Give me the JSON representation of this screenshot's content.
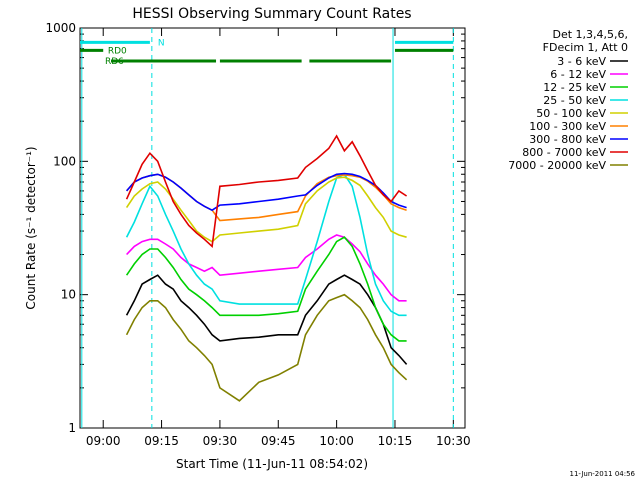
{
  "chart_data": {
    "type": "line",
    "title": "HESSI Observing Summary Count Rates",
    "xlabel": "Start Time (11-Jun-11 08:54:02)",
    "ylabel": "Count Rate (s⁻¹ detector⁻¹)",
    "y_scale": "log",
    "ylim": [
      1,
      1000
    ],
    "xlim": [
      "08:54:02",
      "10:33:00"
    ],
    "x_ticks": [
      "09:00",
      "09:15",
      "09:30",
      "09:45",
      "10:00",
      "10:15",
      "10:30"
    ],
    "y_ticks": [
      "1",
      "10",
      "100",
      "1000"
    ],
    "grid": false,
    "legend_position": "right",
    "legend_header": [
      "Det 1,3,4,5,6,",
      "FDecim 1, Att 0"
    ],
    "footer_timestamp": "11-Jun-2011 04:56",
    "vertical_markers": {
      "color": "#00e0e0",
      "solid": [
        "08:54:30",
        "10:14:30"
      ],
      "dashed": [
        "09:12:30",
        "10:30:00"
      ]
    },
    "flags": [
      {
        "label": "N",
        "color": "#00e0e0",
        "segments": [
          [
            "08:54",
            "09:12"
          ],
          [
            "10:15",
            "10:30"
          ]
        ],
        "level": 780
      },
      {
        "label": "RD0",
        "color": "#008000",
        "segments": [
          [
            "08:54",
            "09:00"
          ],
          [
            "10:15",
            "10:30"
          ]
        ],
        "level": 680
      },
      {
        "label": "RD6",
        "color": "#008000",
        "segments": [
          [
            "09:02",
            "09:29"
          ],
          [
            "09:30",
            "09:51"
          ],
          [
            "09:53",
            "10:14"
          ]
        ],
        "level": 565
      }
    ],
    "x": [
      "09:06",
      "09:08",
      "09:10",
      "09:12",
      "09:14",
      "09:16",
      "09:18",
      "09:20",
      "09:22",
      "09:24",
      "09:26",
      "09:28",
      "09:30",
      "09:35",
      "09:40",
      "09:45",
      "09:50",
      "09:52",
      "09:55",
      "09:58",
      "10:00",
      "10:02",
      "10:04",
      "10:06",
      "10:08",
      "10:10",
      "10:12",
      "10:14",
      "10:16",
      "10:18"
    ],
    "series": [
      {
        "name": "3 - 6 keV",
        "color": "#000000",
        "values": [
          7,
          9,
          12,
          13,
          14,
          12,
          11,
          9,
          8,
          7,
          6,
          5,
          4.5,
          4.7,
          4.8,
          5,
          5,
          7,
          9,
          12,
          13,
          14,
          13,
          12,
          10,
          8,
          6,
          4,
          3.5,
          3
        ]
      },
      {
        "name": "6 - 12 keV",
        "color": "#ff00ff",
        "values": [
          20,
          23,
          25,
          26,
          26,
          24,
          22,
          19,
          17,
          16,
          15,
          16,
          14,
          14.5,
          15,
          15.5,
          16,
          19,
          22,
          26,
          28,
          27,
          24,
          21,
          17,
          14,
          12,
          10,
          9,
          9
        ]
      },
      {
        "name": "12 - 25 keV",
        "color": "#00d000",
        "values": [
          14,
          17,
          20,
          22,
          22,
          19,
          16,
          13,
          11,
          10,
          9,
          8,
          7,
          7,
          7,
          7.2,
          7.5,
          11,
          15,
          20,
          25,
          27,
          23,
          17,
          12,
          8,
          6,
          5,
          4.5,
          4.5
        ]
      },
      {
        "name": "25 - 50 keV",
        "color": "#00e0e0",
        "values": [
          27,
          35,
          48,
          65,
          55,
          40,
          30,
          22,
          17,
          14,
          12,
          11,
          9,
          8.5,
          8.5,
          8.5,
          8.5,
          13,
          25,
          50,
          75,
          80,
          65,
          38,
          20,
          12,
          9,
          7.5,
          7,
          7
        ]
      },
      {
        "name": "50 - 100 keV",
        "color": "#d0d000",
        "values": [
          45,
          55,
          62,
          68,
          70,
          62,
          52,
          43,
          36,
          30,
          27,
          25,
          28,
          29,
          30,
          31,
          33,
          48,
          60,
          70,
          75,
          76,
          72,
          66,
          55,
          45,
          38,
          30,
          28,
          27
        ]
      },
      {
        "name": "100 - 300 keV",
        "color": "#ff8000",
        "values": [
          60,
          70,
          75,
          78,
          80,
          76,
          70,
          63,
          56,
          50,
          46,
          43,
          36,
          37,
          38,
          40,
          42,
          55,
          68,
          76,
          78,
          79,
          78,
          76,
          71,
          64,
          56,
          48,
          45,
          43
        ]
      },
      {
        "name": "300 - 800 keV",
        "color": "#0000ff",
        "values": [
          60,
          70,
          75,
          78,
          80,
          76,
          70,
          63,
          56,
          50,
          46,
          43,
          47,
          48,
          50,
          52,
          55,
          56,
          66,
          75,
          80,
          81,
          80,
          77,
          72,
          66,
          58,
          50,
          47,
          45
        ]
      },
      {
        "name": "800 - 7000 keV",
        "color": "#e00000",
        "values": [
          52,
          70,
          95,
          115,
          100,
          70,
          50,
          40,
          33,
          29,
          26,
          23,
          65,
          67,
          70,
          72,
          75,
          90,
          105,
          125,
          155,
          120,
          140,
          110,
          85,
          66,
          56,
          50,
          60,
          55
        ]
      },
      {
        "name": "7000 - 20000 keV",
        "color": "#808000",
        "values": [
          5,
          6.5,
          8,
          9,
          9,
          8,
          6.5,
          5.5,
          4.5,
          4,
          3.5,
          3,
          2,
          1.6,
          2.2,
          2.5,
          3,
          5,
          7,
          9,
          9.5,
          10,
          9,
          8,
          6.5,
          5,
          4,
          3,
          2.6,
          2.3
        ]
      }
    ]
  }
}
